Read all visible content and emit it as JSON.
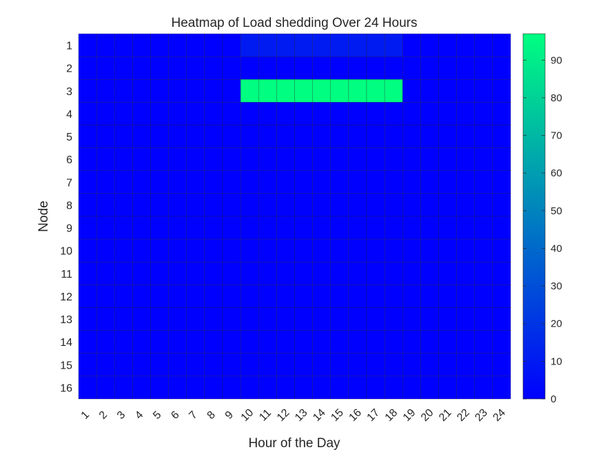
{
  "chart_data": {
    "type": "heatmap",
    "title": "Heatmap of Load shedding Over 24 Hours",
    "xlabel": "Hour of the Day",
    "ylabel": "Node",
    "x_categories": [
      "1",
      "2",
      "3",
      "4",
      "5",
      "6",
      "7",
      "8",
      "9",
      "10",
      "11",
      "12",
      "13",
      "14",
      "15",
      "16",
      "17",
      "18",
      "19",
      "20",
      "21",
      "22",
      "23",
      "24"
    ],
    "y_categories": [
      "1",
      "2",
      "3",
      "4",
      "5",
      "6",
      "7",
      "8",
      "9",
      "10",
      "11",
      "12",
      "13",
      "14",
      "15",
      "16"
    ],
    "values": [
      [
        0,
        0,
        0,
        0,
        0,
        0,
        0,
        0,
        0,
        10,
        10,
        10,
        10,
        10,
        10,
        10,
        10,
        10,
        0,
        0,
        0,
        0,
        0,
        0
      ],
      [
        0,
        0,
        0,
        0,
        0,
        0,
        0,
        0,
        0,
        0,
        0,
        0,
        0,
        0,
        0,
        0,
        0,
        0,
        0,
        0,
        0,
        0,
        0,
        0
      ],
      [
        0,
        0,
        0,
        0,
        0,
        0,
        0,
        0,
        0,
        97,
        97,
        97,
        97,
        97,
        97,
        97,
        97,
        97,
        0,
        0,
        0,
        0,
        0,
        0
      ],
      [
        0,
        0,
        0,
        0,
        0,
        0,
        0,
        0,
        0,
        0,
        0,
        0,
        0,
        0,
        0,
        0,
        0,
        0,
        0,
        0,
        0,
        0,
        0,
        0
      ],
      [
        0,
        0,
        0,
        0,
        0,
        0,
        0,
        0,
        0,
        0,
        0,
        0,
        0,
        0,
        0,
        0,
        0,
        0,
        0,
        0,
        0,
        0,
        0,
        0
      ],
      [
        0,
        0,
        0,
        0,
        0,
        0,
        0,
        0,
        0,
        0,
        0,
        0,
        0,
        0,
        0,
        0,
        0,
        0,
        0,
        0,
        0,
        0,
        0,
        0
      ],
      [
        0,
        0,
        0,
        0,
        0,
        0,
        0,
        0,
        0,
        0,
        0,
        0,
        0,
        0,
        0,
        0,
        0,
        0,
        0,
        0,
        0,
        0,
        0,
        0
      ],
      [
        0,
        0,
        0,
        0,
        0,
        0,
        0,
        0,
        0,
        0,
        0,
        0,
        0,
        0,
        0,
        0,
        0,
        0,
        0,
        0,
        0,
        0,
        0,
        0
      ],
      [
        0,
        0,
        0,
        0,
        0,
        0,
        0,
        0,
        0,
        0,
        0,
        0,
        0,
        0,
        0,
        0,
        0,
        0,
        0,
        0,
        0,
        0,
        0,
        0
      ],
      [
        0,
        0,
        0,
        0,
        0,
        0,
        0,
        0,
        0,
        0,
        0,
        0,
        0,
        0,
        0,
        0,
        0,
        0,
        0,
        0,
        0,
        0,
        0,
        0
      ],
      [
        0,
        0,
        0,
        0,
        0,
        0,
        0,
        0,
        0,
        0,
        0,
        0,
        0,
        0,
        0,
        0,
        0,
        0,
        0,
        0,
        0,
        0,
        0,
        0
      ],
      [
        0,
        0,
        0,
        0,
        0,
        0,
        0,
        0,
        0,
        0,
        0,
        0,
        0,
        0,
        0,
        0,
        0,
        0,
        0,
        0,
        0,
        0,
        0,
        0
      ],
      [
        0,
        0,
        0,
        0,
        0,
        0,
        0,
        0,
        0,
        0,
        0,
        0,
        0,
        0,
        0,
        0,
        0,
        0,
        0,
        0,
        0,
        0,
        0,
        0
      ],
      [
        0,
        0,
        0,
        0,
        0,
        0,
        0,
        0,
        0,
        0,
        0,
        0,
        0,
        0,
        0,
        0,
        0,
        0,
        0,
        0,
        0,
        0,
        0,
        0
      ],
      [
        0,
        0,
        0,
        0,
        0,
        0,
        0,
        0,
        0,
        0,
        0,
        0,
        0,
        0,
        0,
        0,
        0,
        0,
        0,
        0,
        0,
        0,
        0,
        0
      ],
      [
        0,
        0,
        0,
        0,
        0,
        0,
        0,
        0,
        0,
        0,
        0,
        0,
        0,
        0,
        0,
        0,
        0,
        0,
        0,
        0,
        0,
        0,
        0,
        0
      ]
    ],
    "colormap": "winter",
    "colormap_start": "#0000ff",
    "colormap_end": "#00ff80",
    "cell_edge_color": "#262626",
    "clim": [
      0,
      97
    ],
    "colorbar_ticks": [
      0,
      10,
      20,
      30,
      40,
      50,
      60,
      70,
      80,
      90
    ],
    "colorbar_tick_labels": [
      "0",
      "10",
      "20",
      "30",
      "40",
      "50",
      "60",
      "70",
      "80",
      "90"
    ]
  }
}
